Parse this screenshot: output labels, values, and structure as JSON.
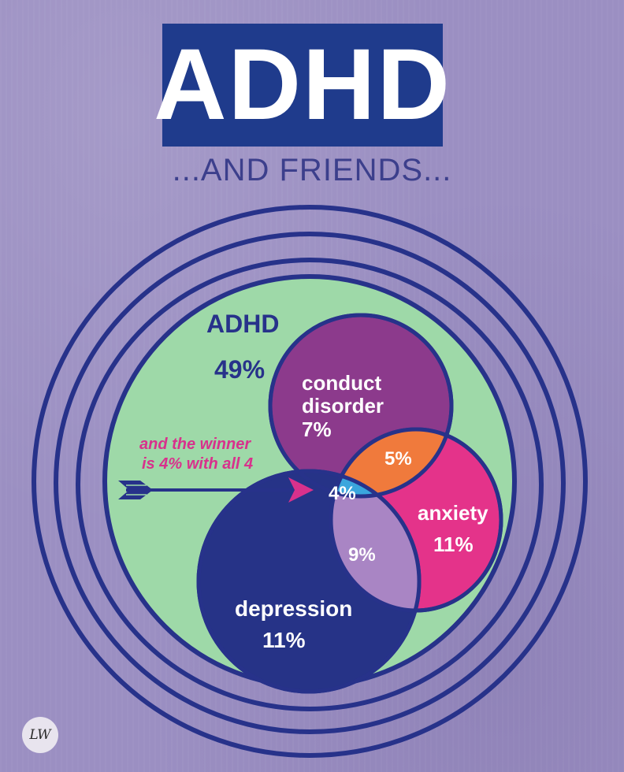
{
  "header": {
    "title": "ADHD",
    "subtitle": "...AND FRIENDS..."
  },
  "diagram": {
    "adhd": {
      "name": "ADHD",
      "value": "49%"
    },
    "conduct": {
      "line1": "conduct",
      "line2": "disorder",
      "value": "7%"
    },
    "anxiety": {
      "name": "anxiety",
      "value": "11%"
    },
    "depression": {
      "name": "depression",
      "value": "11%"
    },
    "overlap_conduct_anxiety": "5%",
    "overlap_all": "4%",
    "overlap_depression_anxiety": "9%",
    "annotation": {
      "line1": "and the winner",
      "line2": "is 4% with all 4"
    }
  },
  "signature": "LW",
  "colors": {
    "background": "#9b8fc2",
    "title_box": "#1f3b8c",
    "ring": "#27328a",
    "adhd": "#9ed9a8",
    "conduct": "#8c3a8c",
    "anxiety": "#e4338a",
    "depression": "#263387",
    "overlap_orange": "#f07a3c",
    "overlap_blue": "#3aa6dd",
    "overlap_lilac": "#a985c4",
    "annotation": "#d8318c"
  }
}
